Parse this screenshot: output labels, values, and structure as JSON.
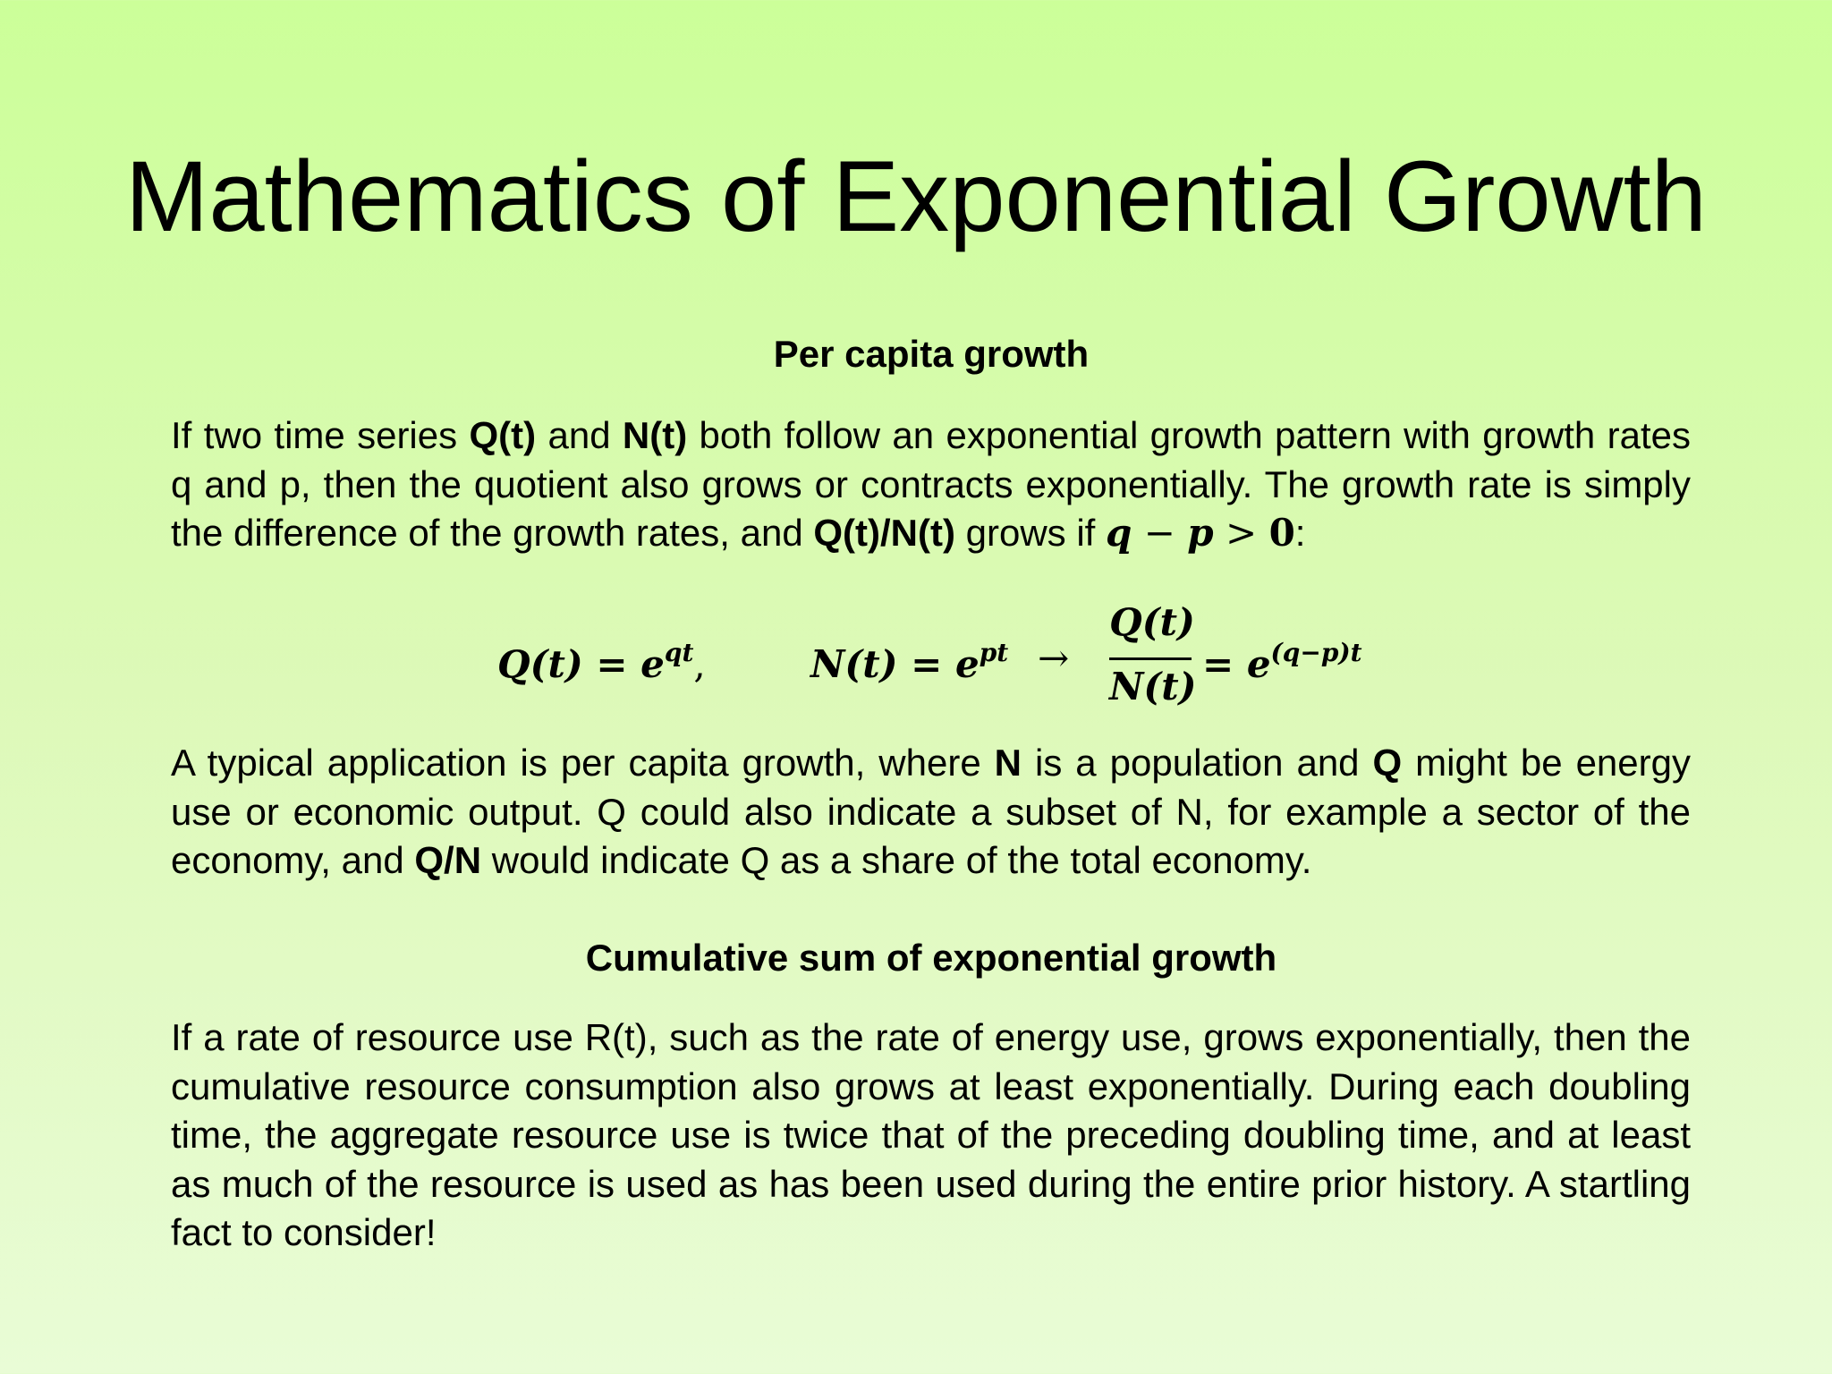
{
  "slide": {
    "title": "Mathematics of Exponential Growth"
  },
  "section1": {
    "heading": "Per capita growth",
    "para1": {
      "t1": "If two time series ",
      "b1": "Q(t)",
      "t2": " and ",
      "b2": "N(t)",
      "t3": " both follow an exponential growth pattern with growth rates q and p, then the quotient also grows or contracts exponentially. The growth rate is simply the difference of the growth rates, and  ",
      "b3": "Q(t)/N(t)",
      "t4": " grows if ",
      "math_q": "q",
      "math_minus": " − ",
      "math_p": "p",
      "math_gt": "  >  ",
      "math_zero": "0",
      "t5": ":"
    },
    "equation": {
      "lhs1": "Q(t) = e",
      "lhs1_exp": "qt",
      "comma": ",",
      "lhs2": "N(t) = e",
      "lhs2_exp": "pt",
      "arrow": "→",
      "numerator": "Q(t)",
      "denominator": "N(t)",
      "rhs": "= e",
      "rhs_exp": "(q−p)t"
    },
    "para2": {
      "t1": "A typical application is per capita growth, where ",
      "b1": "N",
      "t2": " is a population and ",
      "b2": "Q",
      "t3": " might be energy use or economic output. Q could also indicate a subset of N, for example a sector of the economy, and ",
      "b3": "Q/N",
      "t4": " would indicate Q as a share of the total economy."
    }
  },
  "section2": {
    "heading": "Cumulative sum of exponential growth",
    "para": "If a rate of resource use R(t), such as the rate of energy use, grows exponentially, then the cumulative resource consumption also grows at least exponentially. During each doubling time, the aggregate resource use is twice that of the preceding doubling time, and at least as much of the resource is used as has been used during the entire prior history. A startling fact to consider!"
  }
}
